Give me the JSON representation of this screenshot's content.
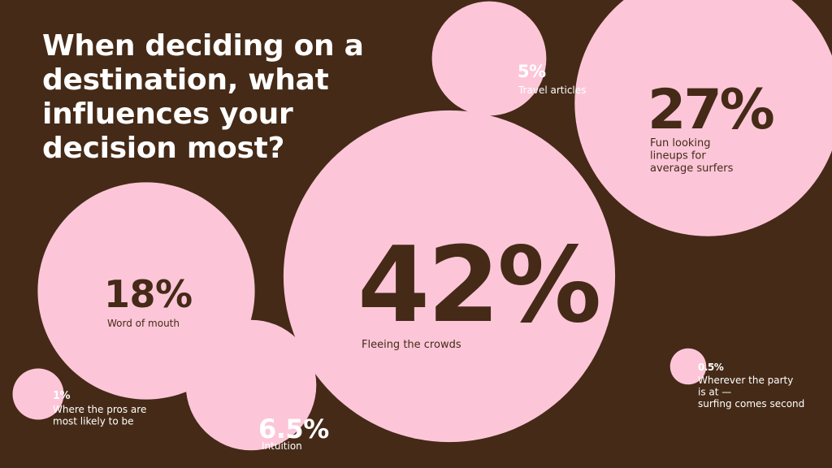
{
  "title": "When deciding on a destination, what influences your decision most?",
  "colors": {
    "background": "#452a17",
    "bubble": "#fcc6d8",
    "text_dark": "#452a17",
    "text_light": "#ffffff"
  },
  "chart_data": {
    "type": "bubble",
    "title": "When deciding on a destination, what influences your decision most?",
    "unit": "%",
    "series": [
      {
        "label": "Fleeing the crowds",
        "value": 42,
        "display": "42%"
      },
      {
        "label": "Fun looking lineups for average surfers",
        "value": 27,
        "display": "27%"
      },
      {
        "label": "Word of mouth",
        "value": 18,
        "display": "18%"
      },
      {
        "label": "Intuition",
        "value": 6.5,
        "display": "6.5%"
      },
      {
        "label": "Travel articles",
        "value": 5,
        "display": "5%"
      },
      {
        "label": "Where the pros are most likely to be",
        "value": 1,
        "display": "1%"
      },
      {
        "label": "Wherever the party is at — surfing comes second",
        "value": 0.5,
        "display": "0.5%"
      }
    ]
  }
}
